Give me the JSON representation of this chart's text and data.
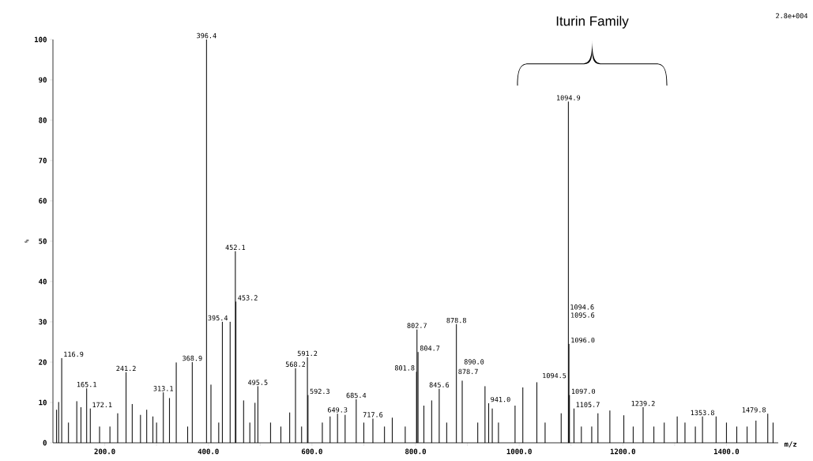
{
  "chart_data": {
    "type": "bar",
    "xlabel": "m/z",
    "ylabel": "%",
    "color": "#000000",
    "annotations": [
      "Iturin Family",
      "2.8e+004",
      {
        "text": "116.9",
        "x": 116.9,
        "y": 21
      },
      {
        "text": "165.1",
        "x": 165.1,
        "y": 13.5
      },
      {
        "text": "172.1",
        "x": 172.1,
        "y": 8.5
      },
      {
        "text": "241.2",
        "x": 241.2,
        "y": 17.5
      },
      {
        "text": "313.1",
        "x": 313.1,
        "y": 12.5
      },
      {
        "text": "368.9",
        "x": 368.9,
        "y": 20
      },
      {
        "text": "395.4",
        "x": 395.4,
        "y": 30
      },
      {
        "text": "396.4",
        "x": 396.4,
        "y": 100
      },
      {
        "text": "452.1",
        "x": 452.1,
        "y": 47.5
      },
      {
        "text": "453.2",
        "x": 453.2,
        "y": 35
      },
      {
        "text": "495.5",
        "x": 495.5,
        "y": 14
      },
      {
        "text": "568.2",
        "x": 568.2,
        "y": 18.5
      },
      {
        "text": "591.2",
        "x": 591.2,
        "y": 21.2
      },
      {
        "text": "592.3",
        "x": 592.3,
        "y": 11.8
      },
      {
        "text": "649.3",
        "x": 649.3,
        "y": 7.2
      },
      {
        "text": "685.4",
        "x": 685.4,
        "y": 10.8
      },
      {
        "text": "717.6",
        "x": 717.6,
        "y": 6
      },
      {
        "text": "801.8",
        "x": 801.8,
        "y": 17.6
      },
      {
        "text": "802.7",
        "x": 802.7,
        "y": 28.1
      },
      {
        "text": "804.7",
        "x": 804.7,
        "y": 22.5
      },
      {
        "text": "845.6",
        "x": 845.6,
        "y": 13.4
      },
      {
        "text": "878.7",
        "x": 878.7,
        "y": 16.7
      },
      {
        "text": "878.8",
        "x": 878.8,
        "y": 29.4
      },
      {
        "text": "890.0",
        "x": 890.0,
        "y": 15.4
      },
      {
        "text": "941.0",
        "x": 941.0,
        "y": 9.8
      },
      {
        "text": "1094.5",
        "x": 1094.5,
        "y": 15.7
      },
      {
        "text": "1094.6",
        "x": 1094.6,
        "y": 32.7
      },
      {
        "text": "1094.9",
        "x": 1094.9,
        "y": 84.6
      },
      {
        "text": "1095.6",
        "x": 1095.6,
        "y": 30.7
      },
      {
        "text": "1096.0",
        "x": 1096.0,
        "y": 24.5
      },
      {
        "text": "1097.0",
        "x": 1097.0,
        "y": 11.8
      },
      {
        "text": "1105.7",
        "x": 1105.7,
        "y": 8.5
      },
      {
        "text": "1239.2",
        "x": 1239.2,
        "y": 8.8
      },
      {
        "text": "1353.8",
        "x": 1353.8,
        "y": 6.5
      },
      {
        "text": "1479.8",
        "x": 1479.8,
        "y": 7.2
      }
    ],
    "xlim": [
      100,
      1500
    ],
    "ylim": [
      0,
      100
    ],
    "xticks": [
      {
        "value": 200,
        "label": "200.0"
      },
      {
        "value": 300,
        "label": null
      },
      {
        "value": 400,
        "label": "400.0"
      },
      {
        "value": 500,
        "label": null
      },
      {
        "value": 600,
        "label": "600.0"
      },
      {
        "value": 700,
        "label": null
      },
      {
        "value": 800,
        "label": "800.0"
      },
      {
        "value": 900,
        "label": null
      },
      {
        "value": 1000,
        "label": "1000.0"
      },
      {
        "value": 1100,
        "label": null
      },
      {
        "value": 1200,
        "label": "1200.0"
      },
      {
        "value": 1300,
        "label": null
      },
      {
        "value": 1400,
        "label": "1400.0"
      }
    ],
    "yticks": [
      0,
      10,
      20,
      30,
      40,
      50,
      60,
      70,
      80,
      90,
      100
    ],
    "x": [
      107,
      111,
      116.9,
      130,
      146,
      154,
      165.1,
      172.1,
      190,
      210,
      225,
      241.2,
      253,
      269,
      281,
      293,
      300,
      313.1,
      325,
      338,
      360,
      368.9,
      395.4,
      396.4,
      405,
      420,
      427,
      442,
      452.1,
      453.2,
      468,
      480,
      490,
      495.5,
      520,
      540,
      557,
      568.2,
      580,
      591.2,
      592.3,
      620,
      635,
      649.3,
      664,
      685.4,
      700,
      717.6,
      740,
      755,
      780,
      801.8,
      802.7,
      804.7,
      816,
      831,
      845.6,
      860,
      878.7,
      878.8,
      890.0,
      920,
      934,
      941.0,
      948,
      960,
      992,
      1007,
      1034,
      1050,
      1081,
      1094.5,
      1094.6,
      1094.9,
      1095.6,
      1096.0,
      1097.0,
      1105.7,
      1120,
      1140,
      1152,
      1175,
      1202,
      1220,
      1239.2,
      1260,
      1280,
      1305,
      1320,
      1340,
      1353.8,
      1380,
      1400,
      1420,
      1440,
      1457,
      1479.8,
      1490
    ],
    "values": [
      8.2,
      10.1,
      21,
      5,
      10.3,
      8.8,
      13.5,
      8.5,
      4,
      4,
      7.3,
      17.5,
      9.6,
      6.9,
      8.2,
      6.5,
      5,
      12.5,
      11.1,
      19.9,
      4,
      20,
      null,
      100,
      14.4,
      5,
      30,
      30,
      47.5,
      35,
      10.5,
      5,
      9.9,
      14,
      5,
      4,
      7.5,
      18.5,
      4,
      21.2,
      11.8,
      5,
      6.5,
      7.2,
      6.9,
      10.8,
      5,
      6,
      4,
      6.2,
      4,
      17.6,
      28.1,
      22.5,
      9.2,
      10.5,
      13.4,
      5,
      null,
      29.4,
      15.4,
      5,
      14,
      9.8,
      8.5,
      5,
      9.2,
      13.7,
      15,
      5,
      7.3,
      null,
      null,
      84.6,
      null,
      24.5,
      11.8,
      8.5,
      4,
      4,
      7.3,
      8,
      6.8,
      4,
      8.8,
      4,
      5,
      6.5,
      5,
      4,
      6.5,
      6.5,
      5,
      4,
      4,
      5.5,
      7.2,
      5
    ]
  }
}
